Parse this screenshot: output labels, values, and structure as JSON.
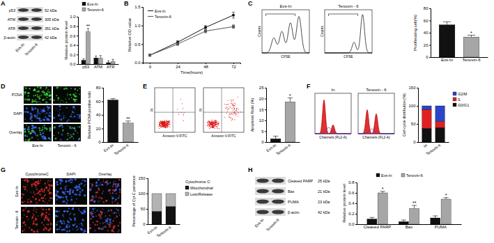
{
  "figure": {
    "panels": [
      {
        "label": "A",
        "blot": {
          "rows": [
            {
              "name": "p53",
              "size": "52 kDa"
            },
            {
              "name": "ATM",
              "size": "305 kDa"
            },
            {
              "name": "ATR",
              "size": "351 kDa"
            },
            {
              "name": "β-actin",
              "size": "42 kDa"
            }
          ],
          "lanes": [
            "Evs-In",
            "Tenovin-6"
          ]
        }
      },
      {
        "label": "B"
      },
      {
        "label": "C",
        "plots": [
          {
            "title": "Evs-In",
            "x_label": "CFSE",
            "y_label": "Counts"
          },
          {
            "title": "Tenovin - 6",
            "x_label": "CFSE",
            "y_label": "Counts"
          }
        ]
      },
      {
        "label": "D",
        "images": {
          "rows": [
            "PCNA",
            "DAPI",
            "Overlay"
          ],
          "columns": [
            "Evs-In",
            "Tenovin - 6"
          ]
        }
      },
      {
        "label": "E",
        "plots": [
          {
            "x_label": "Annexin V-FITC",
            "y_label": "PI"
          },
          {
            "x_label": "Annexin V-FITC",
            "y_label": "PI"
          }
        ]
      },
      {
        "label": "F",
        "plots": [
          {
            "title": "In",
            "x_label": "Channels (FL2-A)"
          },
          {
            "title": "Tenovin - 6",
            "x_label": "Channels (FL2-A)"
          }
        ]
      },
      {
        "label": "G",
        "images": {
          "columns": [
            "CytochromeC",
            "DAPI",
            "Overlay"
          ],
          "rows": [
            "Evs-In",
            "Tenovin - 6"
          ]
        }
      },
      {
        "label": "H",
        "blot": {
          "rows": [
            {
              "name": "Cleaved PARP",
              "size": "25 kDa"
            },
            {
              "name": "Bax",
              "size": "21 kDa"
            },
            {
              "name": "PUMA",
              "size": "23 kDa"
            },
            {
              "name": "β-actin",
              "size": "42 kDa"
            }
          ],
          "lanes": [
            "Evs-In",
            "Tenovin-6"
          ]
        }
      }
    ]
  },
  "chart_data": [
    {
      "type": "bar",
      "categories": [
        "p53",
        "ATM",
        "ATR"
      ],
      "series": [
        {
          "name": "Evs-In",
          "color": "#111111",
          "values": [
            0.08,
            0.13,
            0.03
          ],
          "errors": [
            0.03,
            0.04,
            0.04
          ]
        },
        {
          "name": "Tenovin-6",
          "color": "#a6a6a6",
          "values": [
            0.68,
            0.12,
            0.05
          ],
          "errors": [
            0.07,
            0.06,
            0.05
          ]
        }
      ],
      "y_label": "Relative protein level",
      "ylim": [
        0,
        1
      ],
      "yticks": [
        {
          "value": 0,
          "label": "0.0"
        },
        0.2,
        0.4,
        0.6,
        0.8,
        {
          "value": 1,
          "label": "1.0"
        }
      ],
      "legend": "top",
      "annotations": [
        {
          "text": "**",
          "category": "p53",
          "series": "Tenovin-6"
        }
      ]
    },
    {
      "type": "line",
      "x": [
        0,
        24,
        48,
        72
      ],
      "xlim": [
        -6,
        78
      ],
      "xticks": [
        0,
        24,
        48,
        72
      ],
      "series": [
        {
          "name": "Evs-In",
          "color": "#111111",
          "marker": "circle",
          "values": [
            0.2,
            0.55,
            0.95,
            1.28
          ],
          "errors": [
            0.02,
            0.04,
            0.05,
            0.08
          ]
        },
        {
          "name": "Tenovin-6",
          "color": "#555555",
          "marker": "square",
          "values": [
            0.2,
            0.5,
            0.85,
            0.97
          ],
          "errors": [
            0.02,
            0.03,
            0.05,
            0.05
          ]
        }
      ],
      "x_label": "Time(hours)",
      "y_label": "Relative OD value",
      "ylim": [
        0,
        1.5
      ],
      "yticks": [
        {
          "value": 0,
          "label": "0.0"
        },
        0.5,
        {
          "value": 1,
          "label": "1.0"
        },
        1.5
      ],
      "legend": "top-left"
    },
    {
      "type": "bar",
      "categories": [
        "Evs-In",
        "Tenovin-6"
      ],
      "values": [
        53,
        33
      ],
      "errors": [
        5,
        3
      ],
      "colors": [
        "#111111",
        "#a6a6a6"
      ],
      "y_label": "Proliferating cell(%)",
      "ylim": [
        0,
        80
      ],
      "yticks": [
        0,
        20,
        40,
        60,
        80
      ],
      "annotations": [
        {
          "text": "*",
          "category": "Tenovin-6"
        }
      ]
    },
    {
      "type": "bar",
      "categories": [
        "Evs-In",
        "Tenovin-6"
      ],
      "values": [
        62,
        28
      ],
      "errors": [
        2,
        3
      ],
      "colors": [
        "#111111",
        "#a6a6a6"
      ],
      "y_label": "Relative PCNA positive ratio",
      "ylim": [
        0,
        80
      ],
      "yticks": [
        0,
        20,
        40,
        60,
        80
      ],
      "annotations": [
        {
          "text": "**",
          "category": "Tenovin-6"
        }
      ]
    },
    {
      "type": "bar",
      "categories": [
        "Evs-In",
        "Tenovin-6"
      ],
      "values": [
        1.5,
        18.5
      ],
      "errors": [
        1.2,
        1.8
      ],
      "colors": [
        "#111111",
        "#a6a6a6"
      ],
      "y_label": "Apoptosis Ratio (%)",
      "ylim": [
        0,
        25
      ],
      "yticks": [
        0,
        5,
        10,
        15,
        20,
        25
      ],
      "annotations": [
        {
          "text": "*",
          "category": "Tenovin-6"
        }
      ]
    },
    {
      "type": "bar",
      "stacked": true,
      "categories": [
        "In",
        "Tenovin-6"
      ],
      "series": [
        {
          "name": "G0/G1",
          "color": "#111111",
          "values": [
            38,
            40
          ]
        },
        {
          "name": "S",
          "color": "#e02020",
          "values": [
            52,
            17
          ]
        },
        {
          "name": "G2/M",
          "color": "#2a45c8",
          "values": [
            10,
            43
          ]
        }
      ],
      "y_label": "Cell cycle distribution (%)",
      "ylim": [
        0,
        150
      ],
      "yticks": [
        0,
        50,
        100,
        150
      ],
      "legend": "right"
    },
    {
      "type": "bar",
      "stacked": true,
      "categories": [
        "Evs-In",
        "Tenovin-6"
      ],
      "series": [
        {
          "name": "Mitochondrial",
          "color": "#111111",
          "values": [
            42,
            58
          ]
        },
        {
          "name": "Lost/Release",
          "color": "#b3b3b3",
          "values": [
            58,
            42
          ]
        }
      ],
      "y_label": "Percentage of Cyt C persence",
      "ylim": [
        0,
        150
      ],
      "yticks": [
        0,
        50,
        100,
        150
      ],
      "legend": "right",
      "legend_title": "Cytochrome C:"
    },
    {
      "type": "bar",
      "categories": [
        "Cleaved PARP",
        "Bax",
        "PUMA"
      ],
      "series": [
        {
          "name": "Evs-In",
          "color": "#111111",
          "values": [
            0.1,
            0.05,
            0.12
          ],
          "errors": [
            0.03,
            0.03,
            0.04
          ]
        },
        {
          "name": "Tenovin-6",
          "color": "#a6a6a6",
          "values": [
            0.6,
            0.3,
            0.48
          ],
          "errors": [
            0.03,
            0.06,
            0.03
          ]
        }
      ],
      "y_label": "Relative protein level",
      "ylim": [
        0,
        0.8
      ],
      "yticks": [
        {
          "value": 0,
          "label": "0.0"
        },
        0.2,
        0.4,
        0.6,
        0.8
      ],
      "legend": "top",
      "annotations": [
        {
          "text": "*",
          "category": "Cleaved PARP",
          "series": "Tenovin-6"
        },
        {
          "text": "**",
          "category": "Bax",
          "series": "Tenovin-6"
        },
        {
          "text": "*",
          "category": "PUMA",
          "series": "Tenovin-6"
        }
      ]
    }
  ]
}
